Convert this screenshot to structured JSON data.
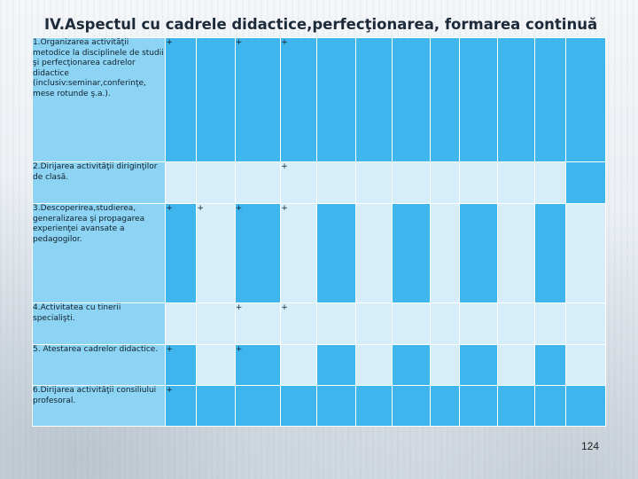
{
  "slide": {
    "title": "IV.Aspectul cu cadrele didactice,perfecţionarea, formarea continuă",
    "page_number": "124"
  },
  "table": {
    "rows": [
      {
        "label": "1.Organizarea activităţii metodice la disciplinele de studii şi perfecţionarea cadrelor didactice (inclusiv:seminar,conferinţe, mese rotunde ş.a.).",
        "cells": [
          "+",
          "",
          "+",
          "+",
          "",
          "",
          "",
          "",
          "",
          "",
          "",
          ""
        ]
      },
      {
        "label": "2.Dirijarea activităţii diriginţilor de clasă.",
        "cells": [
          "",
          "",
          "",
          "+",
          "",
          "",
          "",
          "",
          "",
          "",
          "",
          ""
        ]
      },
      {
        "label": "3.Descoperirea,studierea, generalizarea şi propagarea experienţei avansate a pedagogilor.",
        "cells": [
          "+",
          "+",
          "+",
          "+",
          "",
          "",
          "",
          "",
          "",
          "",
          "",
          ""
        ]
      },
      {
        "label": "4.Activitatea cu tinerii specialişti.",
        "cells": [
          "",
          "",
          "+",
          "+",
          "",
          "",
          "",
          "",
          "",
          "",
          "",
          ""
        ]
      },
      {
        "label": "5. Atestarea cadrelor didactice.",
        "cells": [
          "+",
          "",
          "+",
          "",
          "",
          "",
          "",
          "",
          "",
          "",
          "",
          ""
        ]
      },
      {
        "label": "6.Dirijarea activităţii consiliului profesoral.",
        "cells": [
          "+",
          "",
          "",
          "",
          "",
          "",
          "",
          "",
          "",
          "",
          "",
          ""
        ]
      }
    ]
  }
}
